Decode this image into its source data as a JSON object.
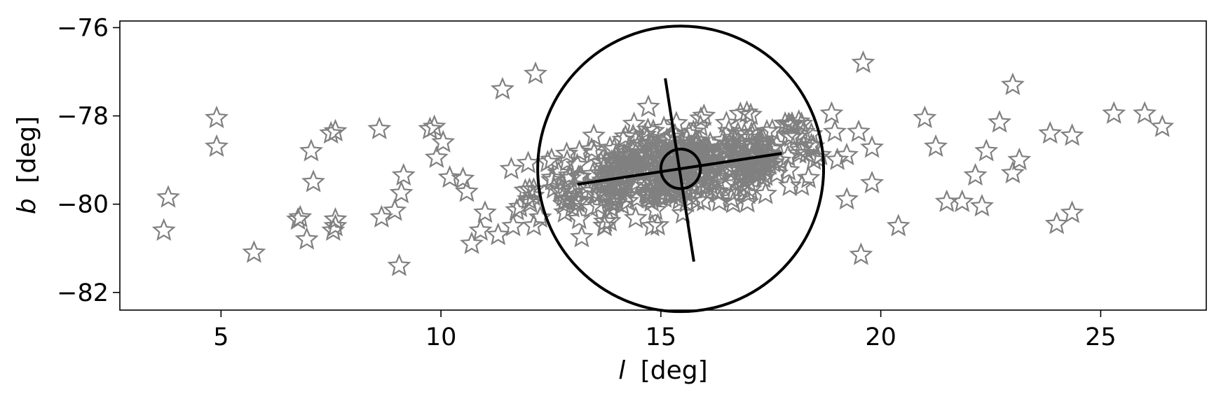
{
  "chart_data": {
    "type": "scatter",
    "xlabel": {
      "symbol": "l",
      "unit": "[deg]"
    },
    "ylabel": {
      "symbol": "b",
      "unit": "[deg]"
    },
    "xlim": [
      2.7,
      27.4
    ],
    "ylim": [
      -82.4,
      -75.85
    ],
    "xticks": [
      5,
      10,
      15,
      20,
      25
    ],
    "xtick_labels": [
      "5",
      "10",
      "15",
      "20",
      "25"
    ],
    "yticks": [
      -76,
      -78,
      -80,
      -82
    ],
    "ytick_labels": [
      "−76",
      "−78",
      "−80",
      "−82"
    ],
    "grid": false,
    "marker": {
      "shape": "star",
      "fill": "none",
      "color": "#808080"
    },
    "line_color": "#000000",
    "outlier_points": [
      [
        3.7,
        -80.6
      ],
      [
        3.8,
        -79.85
      ],
      [
        4.9,
        -78.05
      ],
      [
        4.9,
        -78.7
      ],
      [
        5.75,
        -81.1
      ],
      [
        6.75,
        -80.35
      ],
      [
        6.8,
        -80.3
      ],
      [
        6.95,
        -80.8
      ],
      [
        7.05,
        -78.8
      ],
      [
        7.1,
        -79.5
      ],
      [
        7.5,
        -78.4
      ],
      [
        7.55,
        -80.6
      ],
      [
        7.6,
        -80.5
      ],
      [
        7.6,
        -80.35
      ],
      [
        7.6,
        -78.35
      ],
      [
        8.6,
        -78.3
      ],
      [
        8.65,
        -80.3
      ],
      [
        8.95,
        -80.15
      ],
      [
        9.05,
        -81.4
      ],
      [
        9.1,
        -79.75
      ],
      [
        9.15,
        -79.35
      ],
      [
        9.75,
        -78.3
      ],
      [
        9.85,
        -78.25
      ],
      [
        9.9,
        -78.95
      ],
      [
        10.05,
        -78.6
      ],
      [
        10.2,
        -79.4
      ],
      [
        10.7,
        -80.9
      ],
      [
        10.9,
        -80.6
      ],
      [
        11.3,
        -80.7
      ],
      [
        11.4,
        -77.4
      ],
      [
        12.15,
        -77.05
      ],
      [
        13.2,
        -80.75
      ],
      [
        19.55,
        -81.15
      ],
      [
        19.6,
        -76.8
      ],
      [
        20.4,
        -80.5
      ],
      [
        21.0,
        -78.05
      ],
      [
        21.25,
        -78.7
      ],
      [
        21.5,
        -79.95
      ],
      [
        21.85,
        -79.95
      ],
      [
        22.15,
        -79.35
      ],
      [
        22.3,
        -80.05
      ],
      [
        22.4,
        -78.8
      ],
      [
        22.7,
        -78.15
      ],
      [
        23.0,
        -77.3
      ],
      [
        23.0,
        -79.3
      ],
      [
        23.15,
        -79.0
      ],
      [
        23.85,
        -78.4
      ],
      [
        24.0,
        -80.45
      ],
      [
        24.35,
        -78.45
      ],
      [
        24.35,
        -80.2
      ],
      [
        25.3,
        -77.95
      ],
      [
        26.0,
        -77.95
      ],
      [
        26.4,
        -78.25
      ]
    ],
    "dense_cluster": {
      "center": [
        15.45,
        -79.2
      ],
      "half_extent": [
        4.0,
        1.1
      ],
      "approx_count": 460
    },
    "annotations": {
      "large_circle": {
        "center": [
          15.45,
          -79.2
        ],
        "radius_deg": 3.25
      },
      "small_circle": {
        "center": [
          15.45,
          -79.2
        ],
        "radius_deg": 0.45
      },
      "major_axis": {
        "from": [
          13.1,
          -79.55
        ],
        "to": [
          17.75,
          -78.85
        ]
      },
      "minor_axis": {
        "from": [
          15.1,
          -77.15
        ],
        "to": [
          15.75,
          -81.3
        ]
      }
    }
  }
}
